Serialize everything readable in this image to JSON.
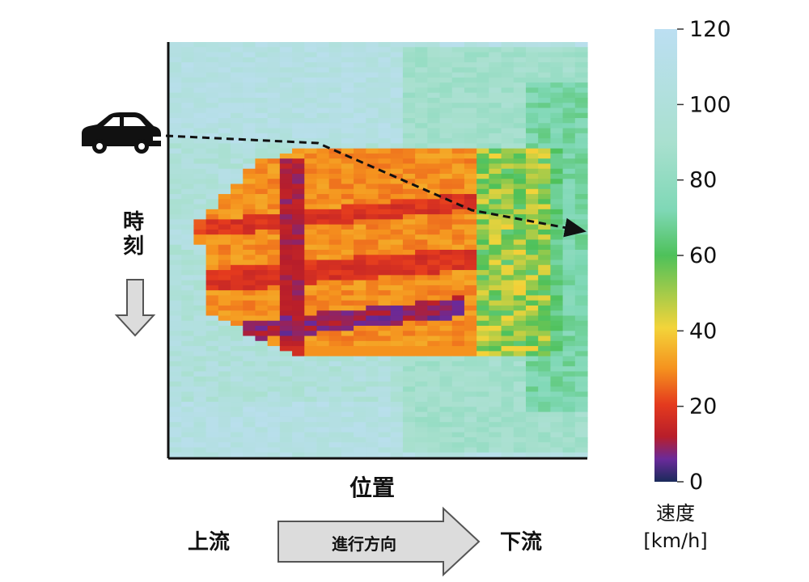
{
  "chart_data": {
    "type": "heatmap",
    "title": "",
    "xlabel": "位置",
    "ylabel": "時刻",
    "x_direction": {
      "upstream": "上流",
      "downstream": "下流",
      "arrow_label": "進行方向"
    },
    "colorbar": {
      "label": "速度",
      "unit": "[km/h]",
      "range": [
        0,
        120
      ],
      "ticks": [
        0,
        20,
        40,
        60,
        80,
        100,
        120
      ],
      "colormap": [
        "#1a2a5a",
        "#6a2a9a",
        "#b81e2a",
        "#e43a1e",
        "#f5921e",
        "#f3d43a",
        "#4ec15a",
        "#7fd8b6",
        "#a9e0cf",
        "#bcdff2"
      ]
    },
    "grid": false,
    "legend": "colorbar right",
    "congestion_region": {
      "description_values_kmh": {
        "free_flow": 100,
        "light": 55,
        "moderate": 30,
        "heavy": 15,
        "severe": 5
      },
      "upstream_edge": "widens with time toward upstream",
      "bottleneck": "downstream end near right edge"
    },
    "vehicle_trajectory": {
      "icon": "car-icon",
      "style": "dashed",
      "direction": "downstream over time"
    }
  },
  "colors": {
    "axis": "#111111",
    "arrow_fill": "#dcdcdc",
    "arrow_stroke": "#555555",
    "icon": "#111111"
  }
}
